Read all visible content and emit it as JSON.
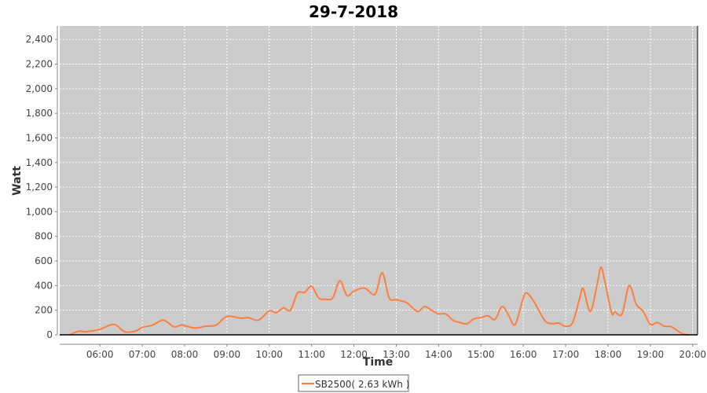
{
  "chart_data": {
    "type": "line",
    "title": "29-7-2018",
    "xlabel": "Time",
    "ylabel": "Watt",
    "xlim": [
      "05:03",
      "20:07"
    ],
    "ylim": [
      0,
      2510
    ],
    "x_ticks": [
      "06:00",
      "07:00",
      "08:00",
      "09:00",
      "10:00",
      "11:00",
      "12:00",
      "13:00",
      "14:00",
      "15:00",
      "16:00",
      "17:00",
      "18:00",
      "19:00",
      "20:00"
    ],
    "y_ticks": [
      "0",
      "200",
      "400",
      "600",
      "800",
      "1,000",
      "1,200",
      "1,400",
      "1,600",
      "1,800",
      "2,000",
      "2,200",
      "2,400"
    ],
    "grid": true,
    "legend_position": "bottom",
    "colors": {
      "plot_bg": "#cccccc",
      "grid": "#ffffff",
      "series": "#ff7f3f"
    },
    "series": [
      {
        "name": "SB2500( 2.63 kWh )",
        "x": [
          "05:17",
          "05:30",
          "05:40",
          "06:00",
          "06:20",
          "06:35",
          "06:50",
          "07:00",
          "07:15",
          "07:30",
          "07:45",
          "07:55",
          "08:00",
          "08:15",
          "08:30",
          "08:45",
          "09:00",
          "09:20",
          "09:30",
          "09:45",
          "10:00",
          "10:10",
          "10:20",
          "10:30",
          "10:40",
          "10:50",
          "11:00",
          "11:10",
          "11:20",
          "11:30",
          "11:40",
          "11:50",
          "12:00",
          "12:15",
          "12:30",
          "12:40",
          "12:50",
          "13:00",
          "13:15",
          "13:30",
          "13:40",
          "13:50",
          "14:00",
          "14:10",
          "14:20",
          "14:30",
          "14:40",
          "14:50",
          "15:00",
          "15:10",
          "15:20",
          "15:30",
          "15:40",
          "15:45",
          "15:50",
          "16:00",
          "16:05",
          "16:15",
          "16:30",
          "16:40",
          "16:50",
          "17:00",
          "17:10",
          "17:20",
          "17:25",
          "17:35",
          "17:45",
          "17:50",
          "17:55",
          "18:05",
          "18:10",
          "18:20",
          "18:30",
          "18:40",
          "18:50",
          "19:00",
          "19:10",
          "19:20",
          "19:30",
          "19:45",
          "19:55"
        ],
        "y": [
          0,
          30,
          25,
          45,
          85,
          25,
          30,
          60,
          80,
          120,
          65,
          80,
          75,
          55,
          70,
          80,
          150,
          135,
          140,
          120,
          195,
          180,
          220,
          200,
          340,
          345,
          395,
          300,
          290,
          300,
          440,
          320,
          355,
          380,
          330,
          505,
          300,
          285,
          260,
          190,
          230,
          200,
          170,
          170,
          120,
          100,
          90,
          130,
          140,
          155,
          125,
          230,
          150,
          90,
          100,
          300,
          340,
          270,
          120,
          90,
          95,
          70,
          100,
          300,
          375,
          190,
          420,
          550,
          450,
          180,
          185,
          170,
          400,
          250,
          190,
          85,
          100,
          70,
          65,
          10,
          0
        ]
      }
    ]
  }
}
